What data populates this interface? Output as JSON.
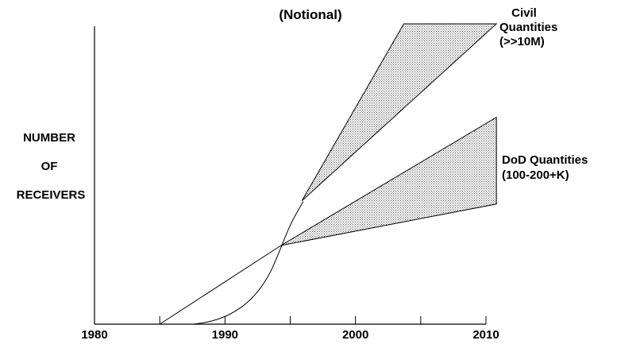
{
  "chart_data": {
    "type": "line",
    "title": "(Notional)",
    "xlabel": "",
    "ylabel_lines": [
      "NUMBER",
      "OF",
      "RECEIVERS"
    ],
    "xlim": [
      1980,
      2010
    ],
    "x_ticks": [
      1980,
      1985,
      1990,
      1995,
      2000,
      2005,
      2010
    ],
    "x_tick_labels": [
      "1980",
      "",
      "1990",
      "",
      "2000",
      "",
      "2010"
    ],
    "y_tick_labels": [],
    "grid": false,
    "fill_pattern": "stipple",
    "series": [
      {
        "name": "",
        "shape": "curve",
        "points": [
          [
            1987.6,
            0
          ],
          [
            1989,
            0.4
          ],
          [
            1990.5,
            1.5
          ],
          [
            1992,
            3.6
          ],
          [
            1993.3,
            6.9
          ],
          [
            1994.2,
            11.0
          ],
          [
            1995,
            15.0
          ],
          [
            1996,
            18.4
          ]
        ]
      },
      {
        "name": "",
        "shape": "line",
        "points": [
          [
            1985,
            0
          ],
          [
            1994.3,
            11.8
          ]
        ]
      }
    ],
    "bands": [
      {
        "label_lines": [
          "Civil",
          "Quantities",
          "(>>10M)"
        ],
        "apex": [
          1995.9,
          18.5
        ],
        "upper": [
          [
            2003.7,
            45.0
          ],
          [
            2010.8,
            45.0
          ]
        ],
        "lower_edge_end": [
          2010.8,
          45.0
        ]
      },
      {
        "label_lines": [
          "DoD Quantities",
          "(100-200+K)"
        ],
        "apex": [
          1994.3,
          11.8
        ],
        "upper_end": [
          2010.8,
          31.0
        ],
        "lower_end": [
          2010.8,
          18.0
        ]
      }
    ]
  }
}
